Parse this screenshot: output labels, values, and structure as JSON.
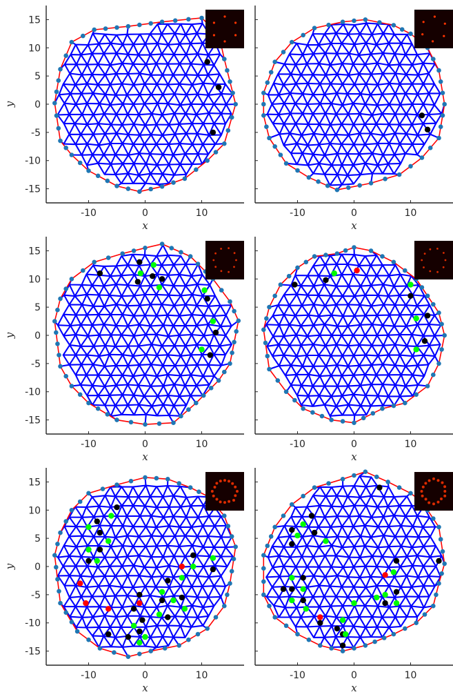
{
  "figure": {
    "xlabel": "x",
    "ylabel": "y",
    "xticks": [
      -10,
      0,
      10
    ],
    "yticks": [
      15,
      10,
      5,
      0,
      -5,
      -10,
      -15
    ],
    "xlim": [
      -17.5,
      17.5
    ],
    "ylim": [
      -17.5,
      17.5
    ]
  },
  "colors": {
    "mesh": "#0000ff",
    "boundary_node": "#1f77b4",
    "hull": "#ff0000",
    "black_defect": "#000000",
    "green_defect": "#00ff00",
    "red_defect": "#ff0000",
    "inset_bg": "#150000",
    "inset_peak": "#ff3300"
  },
  "chart_data": [
    {
      "type": "scatter",
      "panel": "a",
      "xlabel": "x",
      "ylabel": "y",
      "xlim": [
        -17.5,
        17.5
      ],
      "ylim": [
        -17.5,
        17.5
      ],
      "hull": [
        [
          -16,
          0.2
        ],
        [
          -15,
          6.2
        ],
        [
          -13,
          11
        ],
        [
          -9,
          13.2
        ],
        [
          -3,
          13.8
        ],
        [
          3,
          14.6
        ],
        [
          10,
          15.3
        ],
        [
          13,
          12.5
        ],
        [
          14,
          8
        ],
        [
          16,
          0
        ],
        [
          14,
          -7
        ],
        [
          11,
          -10
        ],
        [
          7,
          -13.2
        ],
        [
          3,
          -14.6
        ],
        [
          -1,
          -15.5
        ],
        [
          -5,
          -14.5
        ],
        [
          -10,
          -11.8
        ],
        [
          -13,
          -9
        ],
        [
          -15,
          -6.5
        ],
        [
          -16,
          0.2
        ]
      ],
      "black_defects": [
        [
          11,
          7.5
        ],
        [
          13,
          3
        ],
        [
          12,
          -5
        ]
      ],
      "green_defects": [],
      "red_defects": [],
      "inset": "6-fold"
    },
    {
      "type": "scatter",
      "panel": "b",
      "xlabel": "x",
      "ylabel": "y",
      "xlim": [
        -17.5,
        17.5
      ],
      "ylim": [
        -17.5,
        17.5
      ],
      "hull": [
        [
          -16,
          -2
        ],
        [
          -16,
          2
        ],
        [
          -14,
          7.5
        ],
        [
          -11,
          11
        ],
        [
          -7,
          13.5
        ],
        [
          -2,
          14.6
        ],
        [
          2,
          15
        ],
        [
          7,
          14
        ],
        [
          10,
          12.5
        ],
        [
          13,
          10
        ],
        [
          15,
          6
        ],
        [
          16,
          0
        ],
        [
          15,
          -6
        ],
        [
          12,
          -9.5
        ],
        [
          8,
          -12.5
        ],
        [
          3,
          -14
        ],
        [
          -3,
          -15.2
        ],
        [
          -8,
          -13
        ],
        [
          -12,
          -10.5
        ],
        [
          -15,
          -6
        ],
        [
          -16,
          -2
        ]
      ],
      "black_defects": [
        [
          12,
          -2
        ],
        [
          13,
          -4.5
        ]
      ],
      "green_defects": [],
      "red_defects": [],
      "inset": "6-fold"
    },
    {
      "type": "scatter",
      "panel": "c",
      "xlabel": "x",
      "ylabel": "y",
      "xlim": [
        -17.5,
        17.5
      ],
      "ylim": [
        -17.5,
        17.5
      ],
      "hull": [
        [
          -16,
          2.5
        ],
        [
          -15,
          6.5
        ],
        [
          -13,
          10
        ],
        [
          -9,
          13
        ],
        [
          -4,
          14.5
        ],
        [
          0,
          15.5
        ],
        [
          3,
          16.2
        ],
        [
          8,
          14
        ],
        [
          12,
          10
        ],
        [
          15,
          6
        ],
        [
          16.5,
          2.6
        ],
        [
          15,
          -5
        ],
        [
          13,
          -8
        ],
        [
          9,
          -12
        ],
        [
          5,
          -15.5
        ],
        [
          0,
          -15.8
        ],
        [
          -5,
          -15
        ],
        [
          -10,
          -12
        ],
        [
          -13,
          -9
        ],
        [
          -15,
          -5.5
        ],
        [
          -16,
          2.5
        ]
      ],
      "black_defects": [
        [
          -8,
          11
        ],
        [
          -1,
          13
        ],
        [
          1.3,
          10.5
        ],
        [
          3,
          10
        ],
        [
          -1.3,
          9.5
        ],
        [
          11,
          6.5
        ],
        [
          12.5,
          0.5
        ],
        [
          11.5,
          -3.5
        ]
      ],
      "green_defects": [
        [
          1.5,
          12.5
        ],
        [
          -0.8,
          11
        ],
        [
          2.5,
          8.5
        ],
        [
          10.5,
          8
        ],
        [
          12,
          2.5
        ],
        [
          10,
          -2.5
        ]
      ],
      "red_defects": [],
      "inset": "ring"
    },
    {
      "type": "scatter",
      "panel": "d",
      "xlabel": "x",
      "ylabel": "y",
      "xlim": [
        -17.5,
        17.5
      ],
      "ylim": [
        -17.5,
        17.5
      ],
      "hull": [
        [
          -16,
          1
        ],
        [
          -15,
          5
        ],
        [
          -13,
          9
        ],
        [
          -10,
          12
        ],
        [
          -7,
          14
        ],
        [
          -3,
          14.5
        ],
        [
          0,
          15.6
        ],
        [
          3,
          15
        ],
        [
          7,
          13
        ],
        [
          11,
          10
        ],
        [
          13,
          7
        ],
        [
          15,
          4
        ],
        [
          16,
          0
        ],
        [
          15,
          -5
        ],
        [
          13,
          -9
        ],
        [
          9,
          -12
        ],
        [
          5,
          -13
        ],
        [
          0,
          -15.5
        ],
        [
          -4,
          -15
        ],
        [
          -9,
          -13
        ],
        [
          -12,
          -10
        ],
        [
          -15,
          -6
        ],
        [
          -16,
          1
        ]
      ],
      "black_defects": [
        [
          -10.5,
          9
        ],
        [
          -5,
          9.8
        ],
        [
          10,
          7
        ],
        [
          13,
          3.5
        ],
        [
          12.5,
          -1
        ]
      ],
      "green_defects": [
        [
          -3.5,
          11
        ],
        [
          10,
          9
        ],
        [
          11,
          3
        ],
        [
          11,
          -2.5
        ]
      ],
      "red_defects": [
        [
          0.5,
          11.5
        ]
      ],
      "inset": "ring"
    },
    {
      "type": "scatter",
      "panel": "e",
      "xlabel": "x",
      "ylabel": "y",
      "xlim": [
        -17.5,
        17.5
      ],
      "ylim": [
        -17.5,
        17.5
      ],
      "hull": [
        [
          -16,
          2
        ],
        [
          -15,
          6
        ],
        [
          -13,
          10
        ],
        [
          -10,
          13
        ],
        [
          -5,
          14.5
        ],
        [
          0,
          15.8
        ],
        [
          4,
          15.5
        ],
        [
          8,
          14
        ],
        [
          11,
          12.5
        ],
        [
          14,
          9
        ],
        [
          16,
          3.5
        ],
        [
          15,
          -3
        ],
        [
          14,
          -7
        ],
        [
          11,
          -11
        ],
        [
          6,
          -14
        ],
        [
          1,
          -15
        ],
        [
          -3,
          -16
        ],
        [
          -8,
          -14.5
        ],
        [
          -12,
          -11.5
        ],
        [
          -15,
          -6.5
        ],
        [
          -16,
          2
        ]
      ],
      "black_defects": [
        [
          -5,
          10.5
        ],
        [
          -8.5,
          8
        ],
        [
          -8,
          6
        ],
        [
          -8,
          3
        ],
        [
          -10,
          1
        ],
        [
          8.5,
          2
        ],
        [
          12,
          -0.5
        ],
        [
          4,
          -2.5
        ],
        [
          3,
          -6
        ],
        [
          6.5,
          -5.5
        ],
        [
          -1,
          -5
        ],
        [
          -2,
          -7.5
        ],
        [
          4,
          -9
        ],
        [
          -0.5,
          -9.5
        ],
        [
          -1,
          -11.5
        ],
        [
          -6.5,
          -12
        ],
        [
          -3,
          -12.5
        ]
      ],
      "green_defects": [
        [
          -6,
          9
        ],
        [
          -10,
          7
        ],
        [
          -10,
          3
        ],
        [
          -6.5,
          4.5
        ],
        [
          -8.5,
          1
        ],
        [
          12,
          1.5
        ],
        [
          6.5,
          -2
        ],
        [
          8.5,
          0
        ],
        [
          3,
          -4.5
        ],
        [
          5,
          -6
        ],
        [
          7,
          -7.5
        ],
        [
          2.5,
          -8.5
        ],
        [
          -2,
          -10.5
        ],
        [
          0,
          -12.5
        ],
        [
          -1,
          -13.5
        ]
      ],
      "red_defects": [
        [
          6.5,
          0
        ],
        [
          -11.5,
          -3
        ],
        [
          -10.5,
          -6.5
        ],
        [
          -6.5,
          -7.5
        ],
        [
          -1,
          -6.5
        ]
      ],
      "inset": "ring-dense"
    },
    {
      "type": "scatter",
      "panel": "f",
      "xlabel": "x",
      "ylabel": "y",
      "xlim": [
        -17.5,
        17.5
      ],
      "ylim": [
        -17.5,
        17.5
      ],
      "hull": [
        [
          -16,
          2
        ],
        [
          -14,
          7
        ],
        [
          -11,
          11
        ],
        [
          -7,
          14
        ],
        [
          -2,
          15.5
        ],
        [
          2,
          16.8
        ],
        [
          6,
          15
        ],
        [
          10,
          13
        ],
        [
          12,
          11.5
        ],
        [
          15,
          7
        ],
        [
          16,
          0.5
        ],
        [
          15,
          -3
        ],
        [
          14,
          -7
        ],
        [
          11,
          -10
        ],
        [
          7,
          -12
        ],
        [
          2,
          -14
        ],
        [
          -2,
          -15
        ],
        [
          -6,
          -14
        ],
        [
          -10,
          -12
        ],
        [
          -14,
          -9
        ],
        [
          -16,
          -5
        ],
        [
          -16,
          2
        ]
      ],
      "black_defects": [
        [
          4.5,
          14
        ],
        [
          -7.5,
          9
        ],
        [
          -11,
          6.5
        ],
        [
          -7,
          6
        ],
        [
          -11,
          4
        ],
        [
          15,
          1
        ],
        [
          7.5,
          1
        ],
        [
          7.5,
          -4.5
        ],
        [
          5.5,
          -6.5
        ],
        [
          -9,
          -2
        ],
        [
          -12.5,
          -4
        ],
        [
          -11,
          -4
        ],
        [
          -9,
          -6
        ],
        [
          -6,
          -10
        ],
        [
          -2,
          -12
        ],
        [
          -3,
          -11
        ],
        [
          -2,
          -14
        ]
      ],
      "green_defects": [
        [
          -9,
          7.5
        ],
        [
          -10,
          5.5
        ],
        [
          -5,
          4.5
        ],
        [
          -11,
          -2
        ],
        [
          -9,
          -4
        ],
        [
          -11,
          -6
        ],
        [
          -8.5,
          -7.5
        ],
        [
          0,
          -6.5
        ],
        [
          4,
          -5.5
        ],
        [
          7,
          -1
        ],
        [
          5.5,
          -5
        ],
        [
          7.5,
          -6.5
        ],
        [
          -2,
          -9.5
        ],
        [
          -1.5,
          -12
        ]
      ],
      "red_defects": [
        [
          5.5,
          -1.5
        ],
        [
          -6,
          -9
        ]
      ],
      "inset": "ring-dense"
    }
  ]
}
